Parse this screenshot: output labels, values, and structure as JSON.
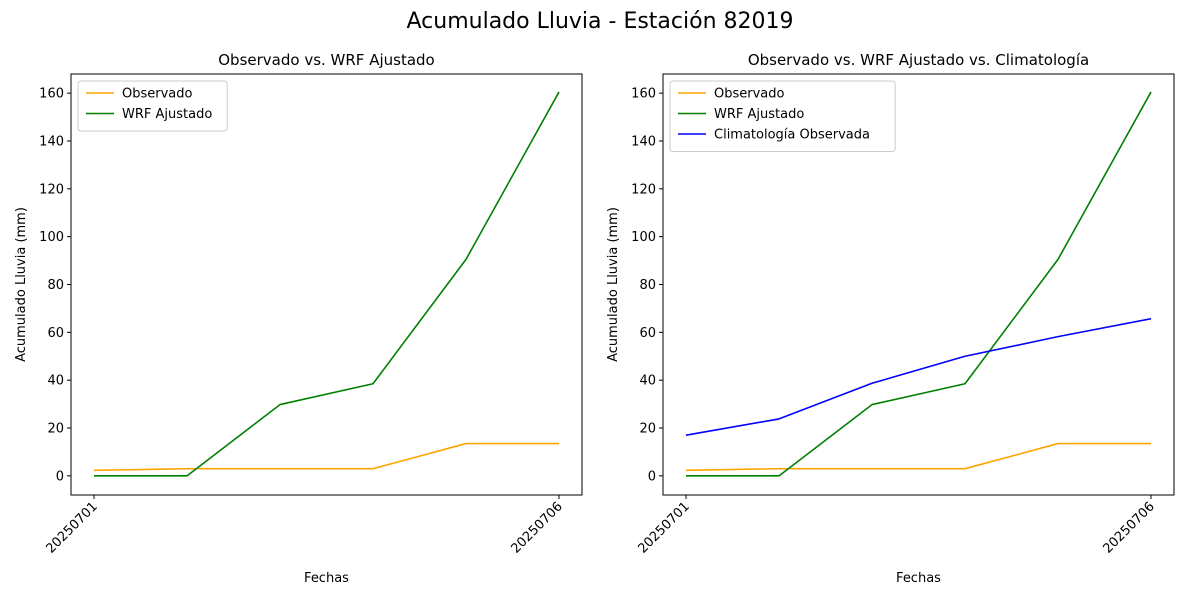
{
  "page_title": "Acumulado Lluvia - Estación 82019",
  "chart_data": [
    {
      "type": "line",
      "title": "Observado vs. WRF Ajustado",
      "xlabel": "Fechas",
      "ylabel": "Acumulado Lluvia (mm)",
      "x": [
        "20250701",
        "20250702",
        "20250703",
        "20250704",
        "20250705",
        "20250706"
      ],
      "x_tick_labels": [
        "20250701",
        "20250706"
      ],
      "ylim": [
        -8,
        168
      ],
      "y_ticks": [
        0,
        20,
        40,
        60,
        80,
        100,
        120,
        140,
        160
      ],
      "legend_position": "upper-left",
      "grid": false,
      "series": [
        {
          "name": "Observado",
          "color": "#ffa500",
          "values": [
            2.3,
            3.0,
            3.0,
            3.0,
            13.5,
            13.5
          ]
        },
        {
          "name": "WRF Ajustado",
          "color": "#008000",
          "values": [
            0.0,
            0.0,
            29.8,
            38.5,
            90.5,
            160.5
          ]
        }
      ]
    },
    {
      "type": "line",
      "title": "Observado vs. WRF Ajustado vs. Climatología",
      "xlabel": "Fechas",
      "ylabel": "Acumulado Lluvia (mm)",
      "x": [
        "20250701",
        "20250702",
        "20250703",
        "20250704",
        "20250705",
        "20250706"
      ],
      "x_tick_labels": [
        "20250701",
        "20250706"
      ],
      "ylim": [
        -8,
        168
      ],
      "y_ticks": [
        0,
        20,
        40,
        60,
        80,
        100,
        120,
        140,
        160
      ],
      "legend_position": "upper-left",
      "grid": false,
      "series": [
        {
          "name": "Observado",
          "color": "#ffa500",
          "values": [
            2.3,
            3.0,
            3.0,
            3.0,
            13.5,
            13.5
          ]
        },
        {
          "name": "WRF Ajustado",
          "color": "#008000",
          "values": [
            0.0,
            0.0,
            29.8,
            38.5,
            90.5,
            160.5
          ]
        },
        {
          "name": "Climatología Observada",
          "color": "#0000ff",
          "values": [
            17.0,
            23.8,
            38.7,
            50.0,
            58.2,
            65.7
          ]
        }
      ]
    }
  ]
}
